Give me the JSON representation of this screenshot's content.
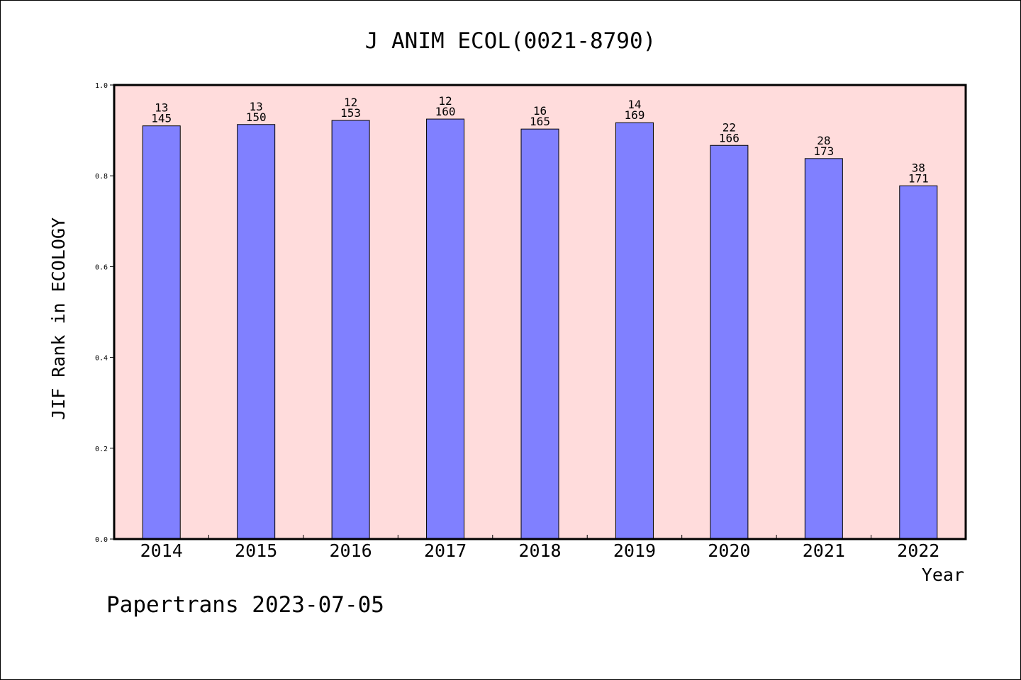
{
  "chart_data": {
    "type": "bar",
    "title": "J ANIM ECOL(0021-8790)",
    "xlabel": "Year",
    "ylabel": "JIF Rank in ECOLOGY",
    "categories": [
      "2014",
      "2015",
      "2016",
      "2017",
      "2018",
      "2019",
      "2020",
      "2021",
      "2022"
    ],
    "values": [
      0.91,
      0.913,
      0.922,
      0.925,
      0.903,
      0.917,
      0.867,
      0.838,
      0.778
    ],
    "rank_labels": [
      "13",
      "13",
      "12",
      "12",
      "16",
      "14",
      "22",
      "28",
      "38"
    ],
    "total_labels": [
      "145",
      "150",
      "153",
      "160",
      "165",
      "169",
      "166",
      "173",
      "171"
    ],
    "ylim": [
      0,
      1.0
    ],
    "yticks": [
      "0.0",
      "0.2",
      "0.4",
      "0.6",
      "0.8",
      "1.0"
    ],
    "grid": false,
    "legend": "none",
    "colors": {
      "bar_fill": "#8080ff",
      "plot_background": "#ffdcdc",
      "axis": "#000000"
    }
  },
  "footer": {
    "credit": "Papertrans 2023-07-05"
  }
}
